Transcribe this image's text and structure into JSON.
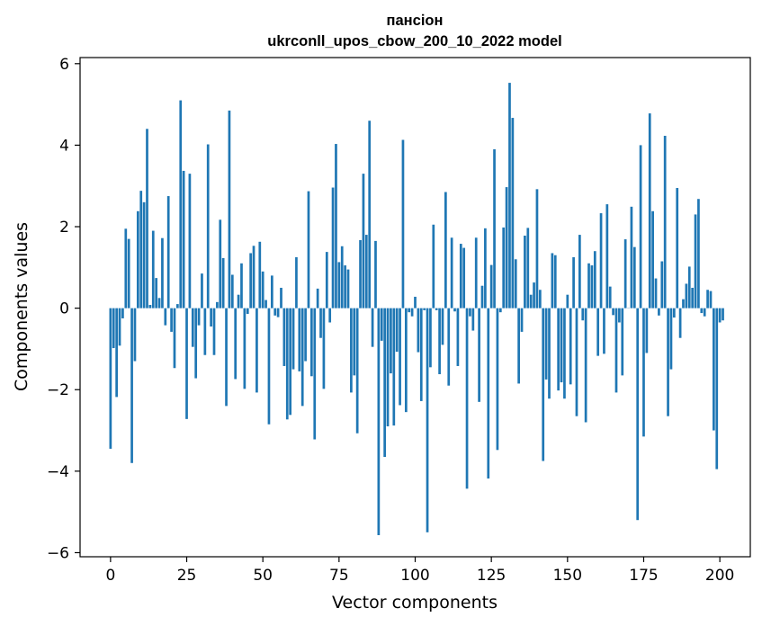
{
  "chart_data": {
    "type": "bar",
    "title": "пансіон",
    "subtitle": "ukrconll_upos_cbow_200_10_2022 model",
    "xlabel": "Vector components",
    "ylabel": "Components values",
    "xlim": [
      -10,
      210
    ],
    "ylim": [
      -6.1,
      6.15
    ],
    "xticks": [
      0,
      25,
      50,
      75,
      100,
      125,
      150,
      175,
      200
    ],
    "yticks": [
      -6,
      -4,
      -2,
      0,
      2,
      4,
      6
    ],
    "ytick_labels": [
      "−6",
      "−4",
      "−2",
      "0",
      "2",
      "4",
      "6"
    ],
    "bar_color": "#1f77b4",
    "grid": false,
    "values": [
      -3.45,
      -0.98,
      -2.18,
      -0.92,
      -0.25,
      1.95,
      1.7,
      -3.8,
      -1.3,
      2.38,
      2.88,
      2.6,
      4.4,
      0.08,
      1.9,
      0.74,
      0.25,
      1.72,
      -0.42,
      2.75,
      -0.58,
      -1.47,
      0.1,
      5.1,
      3.37,
      -2.72,
      3.3,
      -0.95,
      -1.72,
      -0.42,
      0.85,
      -1.15,
      4.02,
      -0.45,
      -1.15,
      0.15,
      2.17,
      1.23,
      -2.4,
      4.85,
      0.82,
      -1.74,
      0.33,
      1.1,
      -1.98,
      -0.14,
      1.35,
      1.53,
      -2.07,
      1.63,
      0.9,
      0.2,
      -2.85,
      0.8,
      -0.18,
      -0.22,
      0.5,
      -1.42,
      -2.73,
      -2.62,
      -1.5,
      1.25,
      -1.55,
      -2.4,
      -1.3,
      2.87,
      -1.67,
      -3.22,
      0.48,
      -0.73,
      -1.98,
      1.38,
      -0.35,
      2.96,
      4.03,
      1.13,
      1.52,
      1.05,
      0.95,
      -2.07,
      -1.65,
      -3.07,
      1.67,
      3.3,
      1.8,
      4.6,
      -0.95,
      1.65,
      -5.57,
      -0.8,
      -3.65,
      -2.9,
      -1.6,
      -2.88,
      -1.07,
      -2.38,
      4.13,
      -2.55,
      -0.1,
      -0.2,
      0.28,
      -1.08,
      -2.28,
      -0.05,
      -5.5,
      -1.45,
      2.05,
      -0.05,
      -1.62,
      -0.9,
      2.85,
      -1.9,
      1.73,
      -0.08,
      -1.42,
      1.58,
      1.48,
      -4.43,
      -0.2,
      -0.55,
      1.73,
      -2.3,
      0.55,
      1.96,
      -4.18,
      1.06,
      3.9,
      -3.48,
      -0.1,
      1.98,
      2.97,
      5.53,
      4.67,
      1.2,
      -1.85,
      -0.58,
      1.78,
      1.97,
      0.33,
      0.63,
      2.92,
      0.45,
      -3.75,
      -1.75,
      -2.22,
      1.35,
      1.3,
      -2.02,
      -1.82,
      -2.22,
      0.33,
      -1.87,
      1.25,
      -2.65,
      1.8,
      -0.3,
      -2.8,
      1.1,
      1.05,
      1.4,
      -1.17,
      2.33,
      -1.12,
      2.55,
      0.53,
      -0.17,
      -2.07,
      -0.35,
      -1.65,
      1.69,
      0.0,
      2.49,
      1.5,
      -5.2,
      4.0,
      -3.15,
      -1.1,
      4.78,
      2.38,
      0.73,
      -0.18,
      1.15,
      4.23,
      -2.65,
      -1.5,
      -0.23,
      2.95,
      -0.73,
      0.22,
      0.6,
      1.02,
      0.5,
      2.3,
      2.68,
      -0.12,
      -0.2,
      0.45,
      0.42,
      -3.0,
      -3.95,
      -0.35,
      -0.3
    ]
  }
}
